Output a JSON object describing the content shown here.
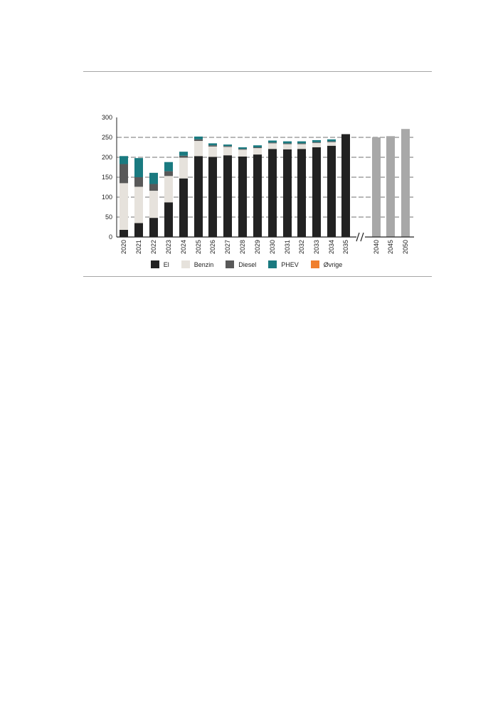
{
  "chart_data": {
    "type": "bar",
    "stacked": true,
    "categories": [
      "2020",
      "2021",
      "2022",
      "2023",
      "2024",
      "2025",
      "2026",
      "2027",
      "2028",
      "2029",
      "2030",
      "2031",
      "2032",
      "2033",
      "2034",
      "2035",
      "2040",
      "2045",
      "2050"
    ],
    "axis_break_after": "2035",
    "ylim": [
      0,
      300
    ],
    "yticks": [
      0,
      50,
      100,
      150,
      200,
      250,
      300
    ],
    "grid": "dashed horizontal",
    "legend_position": "bottom",
    "series": [
      {
        "name": "El",
        "color": "#222222",
        "values": [
          18,
          35,
          48,
          87,
          147,
          203,
          201,
          205,
          202,
          207,
          221,
          220,
          221,
          225,
          229,
          258,
          0,
          0,
          0
        ]
      },
      {
        "name": "Benzin",
        "color": "#e6e2dc",
        "values": [
          117,
          91,
          68,
          66,
          52,
          38,
          26,
          21,
          17,
          16,
          14,
          13,
          12,
          11,
          9,
          0,
          0,
          0,
          0
        ]
      },
      {
        "name": "Diesel",
        "color": "#595959",
        "values": [
          48,
          24,
          17,
          12,
          5,
          4,
          3,
          2,
          2,
          2,
          2,
          2,
          2,
          2,
          2,
          0,
          0,
          0,
          0
        ]
      },
      {
        "name": "PHEV",
        "color": "#1a7a80",
        "values": [
          20,
          48,
          28,
          23,
          10,
          7,
          5,
          4,
          4,
          5,
          5,
          5,
          5,
          5,
          5,
          0,
          0,
          0,
          0
        ]
      },
      {
        "name": "Øvrige",
        "color": "#f07f2d",
        "values": [
          0,
          0,
          0,
          0,
          0,
          0,
          0,
          0,
          0,
          0,
          0,
          0,
          0,
          0,
          0,
          0,
          0,
          0,
          0
        ]
      }
    ],
    "projection": {
      "color": "#a8a8a8",
      "values": [
        0,
        0,
        0,
        0,
        0,
        0,
        0,
        0,
        0,
        0,
        0,
        0,
        0,
        0,
        0,
        0,
        250,
        253,
        271
      ]
    }
  }
}
